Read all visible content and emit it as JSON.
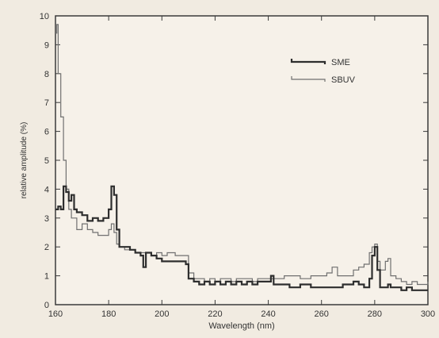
{
  "chart_data": {
    "type": "line",
    "xlabel": "Wavelength (nm)",
    "ylabel": "relative amplitude (%)",
    "xlim": [
      160,
      300
    ],
    "ylim": [
      0,
      10
    ],
    "xticks": [
      160,
      180,
      200,
      220,
      240,
      260,
      280,
      300
    ],
    "yticks": [
      0,
      1,
      2,
      3,
      4,
      5,
      6,
      7,
      8,
      9,
      10
    ],
    "grid": false,
    "legend": "top-right",
    "series": [
      {
        "name": "SME",
        "color": "#2e2e2e",
        "stroke": "thick",
        "x": [
          160,
          161,
          162,
          163,
          164,
          165,
          166,
          167,
          168,
          170,
          172,
          174,
          176,
          178,
          180,
          181,
          182,
          183,
          184,
          186,
          188,
          190,
          192,
          193,
          194,
          196,
          198,
          200,
          202,
          205,
          208,
          209,
          210,
          212,
          214,
          216,
          218,
          220,
          222,
          224,
          226,
          228,
          230,
          232,
          234,
          236,
          238,
          240,
          241,
          242,
          244,
          246,
          248,
          250,
          252,
          254,
          256,
          258,
          260,
          262,
          264,
          266,
          268,
          270,
          272,
          274,
          276,
          278,
          279,
          280,
          281,
          282,
          284,
          285,
          286,
          288,
          290,
          292,
          294,
          296,
          298,
          300
        ],
        "y": [
          3.3,
          3.4,
          3.3,
          4.1,
          3.9,
          3.6,
          3.8,
          3.3,
          3.2,
          3.1,
          2.9,
          3.0,
          2.9,
          3.0,
          3.3,
          4.1,
          3.8,
          2.6,
          2.0,
          2.0,
          1.9,
          1.8,
          1.7,
          1.3,
          1.8,
          1.7,
          1.6,
          1.5,
          1.5,
          1.5,
          1.5,
          1.4,
          0.9,
          0.8,
          0.7,
          0.8,
          0.7,
          0.8,
          0.7,
          0.8,
          0.7,
          0.8,
          0.7,
          0.8,
          0.7,
          0.8,
          0.8,
          0.8,
          1.0,
          0.7,
          0.7,
          0.7,
          0.6,
          0.6,
          0.7,
          0.7,
          0.6,
          0.6,
          0.6,
          0.6,
          0.6,
          0.6,
          0.7,
          0.7,
          0.8,
          0.7,
          0.6,
          0.9,
          1.7,
          2.0,
          1.2,
          0.6,
          0.6,
          0.7,
          0.6,
          0.6,
          0.5,
          0.6,
          0.5,
          0.5,
          0.5,
          0.5
        ]
      },
      {
        "name": "SBUV",
        "color": "#707070",
        "stroke": "thin",
        "x": [
          160,
          160.5,
          161,
          162,
          163,
          164,
          165,
          166,
          168,
          170,
          172,
          174,
          176,
          178,
          180,
          181,
          182,
          183,
          184,
          186,
          188,
          190,
          192,
          194,
          196,
          198,
          200,
          202,
          205,
          208,
          209,
          210,
          212,
          214,
          216,
          218,
          220,
          222,
          224,
          226,
          228,
          230,
          232,
          234,
          236,
          238,
          240,
          242,
          244,
          246,
          248,
          250,
          252,
          254,
          256,
          258,
          260,
          262,
          264,
          266,
          268,
          270,
          272,
          274,
          276,
          278,
          279,
          280,
          281,
          282,
          284,
          285,
          286,
          288,
          290,
          292,
          294,
          296,
          298,
          300
        ],
        "y": [
          9.4,
          9.7,
          8.0,
          6.5,
          5.0,
          4.0,
          3.3,
          3.0,
          2.6,
          2.8,
          2.6,
          2.5,
          2.4,
          2.4,
          2.6,
          2.8,
          2.5,
          2.1,
          2.0,
          1.9,
          1.9,
          1.8,
          1.8,
          1.8,
          1.7,
          1.8,
          1.7,
          1.8,
          1.7,
          1.7,
          1.7,
          1.1,
          0.9,
          0.9,
          0.8,
          0.9,
          0.8,
          0.9,
          0.9,
          0.8,
          0.9,
          0.9,
          0.9,
          0.8,
          0.9,
          0.9,
          0.9,
          0.9,
          0.9,
          1.0,
          1.0,
          1.0,
          0.9,
          0.9,
          1.0,
          1.0,
          1.0,
          1.1,
          1.3,
          1.0,
          1.0,
          1.0,
          1.2,
          1.3,
          1.4,
          1.8,
          2.0,
          2.1,
          1.5,
          1.2,
          1.5,
          1.6,
          1.0,
          0.9,
          0.8,
          0.7,
          0.8,
          0.7,
          0.7,
          0.8
        ]
      }
    ]
  }
}
